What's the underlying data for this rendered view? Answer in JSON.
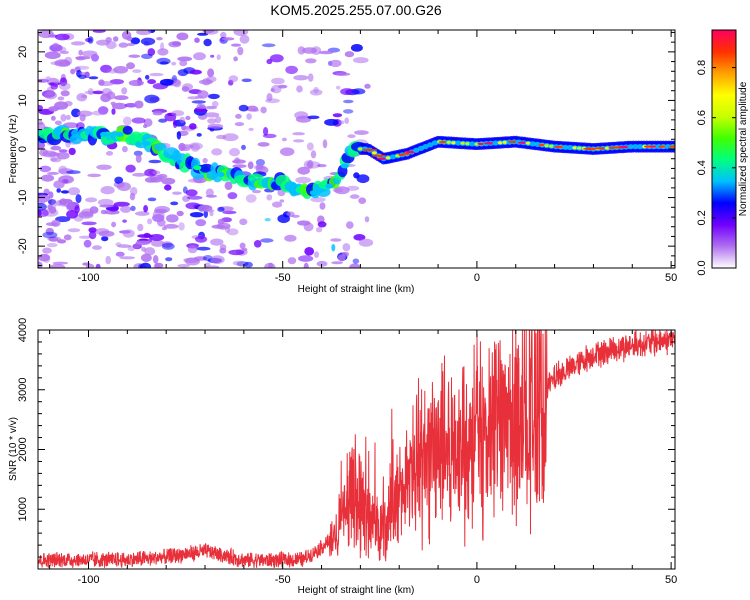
{
  "title": "KOM5.2025.255.07.00.G26",
  "chart_data": [
    {
      "type": "heatmap",
      "name": "spectrogram",
      "xlabel": "Height of straight line (km)",
      "ylabel": "Frequency (Hz)",
      "xlim": [
        -113,
        51
      ],
      "ylim": [
        -24.5,
        24.5
      ],
      "x_ticks": [
        -100,
        -50,
        0,
        50
      ],
      "y_ticks": [
        20,
        10,
        0,
        -10,
        -20
      ],
      "ridge": [
        {
          "x": -112,
          "y": 3
        },
        {
          "x": -100,
          "y": 3
        },
        {
          "x": -90,
          "y": 3
        },
        {
          "x": -82,
          "y": 0
        },
        {
          "x": -75,
          "y": -3
        },
        {
          "x": -68,
          "y": -5
        },
        {
          "x": -60,
          "y": -6
        },
        {
          "x": -50,
          "y": -7
        },
        {
          "x": -42,
          "y": -9
        },
        {
          "x": -36,
          "y": -7
        },
        {
          "x": -32,
          "y": 0
        },
        {
          "x": -28,
          "y": 0
        },
        {
          "x": -24,
          "y": -2
        },
        {
          "x": -18,
          "y": -1
        },
        {
          "x": -10,
          "y": 1.5
        },
        {
          "x": 0,
          "y": 1
        },
        {
          "x": 10,
          "y": 1.5
        },
        {
          "x": 20,
          "y": 0.5
        },
        {
          "x": 30,
          "y": 0
        },
        {
          "x": 40,
          "y": 0.5
        },
        {
          "x": 51,
          "y": 0.5
        }
      ],
      "colorbar": {
        "label": "Normalized spectral amplitude",
        "ticks": [
          0.0,
          0.2,
          0.4,
          0.6,
          0.8
        ],
        "tick_labels": [
          "0.0",
          "0.2",
          "0.4",
          "0.6",
          "0.8"
        ],
        "range": [
          0,
          0.95
        ],
        "colors": [
          "#ffffff",
          "#b070f0",
          "#7000ff",
          "#0000ff",
          "#00c0ff",
          "#00ff80",
          "#40ff00",
          "#c8ff00",
          "#ffff00",
          "#ffa000",
          "#ff3000",
          "#ff0060"
        ]
      }
    },
    {
      "type": "line",
      "name": "snr",
      "xlabel": "Height of straight line (km)",
      "ylabel": "SNR (10 * v/v)",
      "xlim": [
        -113,
        51
      ],
      "ylim": [
        0,
        4000
      ],
      "x_ticks": [
        -100,
        -50,
        0,
        50
      ],
      "y_ticks": [
        4000,
        3000,
        2000,
        1000
      ],
      "color": "#e8303a",
      "envelope": [
        {
          "x": -113,
          "y": 150
        },
        {
          "x": -90,
          "y": 150
        },
        {
          "x": -80,
          "y": 200
        },
        {
          "x": -70,
          "y": 300
        },
        {
          "x": -60,
          "y": 150
        },
        {
          "x": -45,
          "y": 150
        },
        {
          "x": -37,
          "y": 500
        },
        {
          "x": -33,
          "y": 1200
        },
        {
          "x": -30,
          "y": 1300
        },
        {
          "x": -28,
          "y": 800
        },
        {
          "x": -24,
          "y": 700
        },
        {
          "x": -20,
          "y": 1200
        },
        {
          "x": -16,
          "y": 1700
        },
        {
          "x": -12,
          "y": 2000
        },
        {
          "x": -8,
          "y": 2000
        },
        {
          "x": -4,
          "y": 2100
        },
        {
          "x": 0,
          "y": 2300
        },
        {
          "x": 5,
          "y": 2100
        },
        {
          "x": 10,
          "y": 2600
        },
        {
          "x": 15,
          "y": 2800
        },
        {
          "x": 20,
          "y": 3200
        },
        {
          "x": 25,
          "y": 3400
        },
        {
          "x": 30,
          "y": 3600
        },
        {
          "x": 40,
          "y": 3750
        },
        {
          "x": 51,
          "y": 3850
        }
      ]
    }
  ]
}
